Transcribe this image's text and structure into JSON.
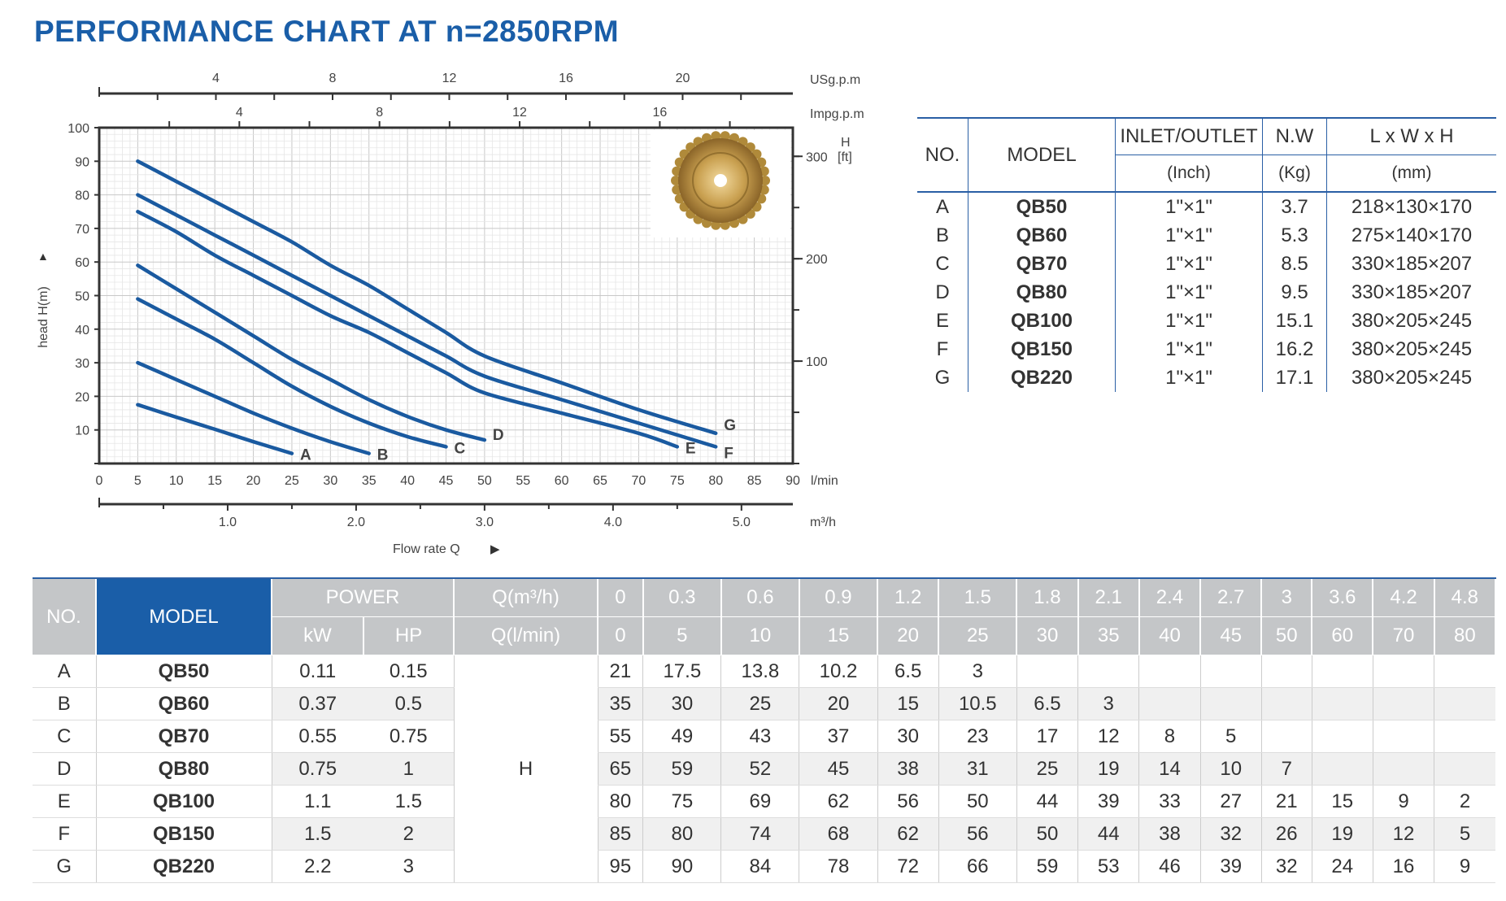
{
  "title": "PERFORMANCE CHART AT n=2850RPM",
  "chart_data": {
    "type": "line",
    "title": "PERFORMANCE CHART AT n=2850RPM",
    "xlabel": "Flow rate Q",
    "ylabel": "head H(m)",
    "xlim": [
      0,
      90
    ],
    "ylim": [
      0,
      100
    ],
    "grid": true,
    "x_unit": "l/min",
    "x_ticks": [
      "0",
      "5",
      "10",
      "15",
      "20",
      "25",
      "30",
      "35",
      "40",
      "45",
      "50",
      "55",
      "60",
      "65",
      "70",
      "75",
      "80",
      "85",
      "90"
    ],
    "y_ticks": [
      "10",
      "20",
      "30",
      "40",
      "50",
      "60",
      "70",
      "80",
      "90",
      "100"
    ],
    "ft_axis": {
      "unit_top": "H",
      "unit": "[ft]",
      "ticks": [
        {
          "value": 100,
          "label": "100"
        },
        {
          "value": 200,
          "label": "200"
        },
        {
          "value": 300,
          "label": "300"
        }
      ]
    },
    "m3h_axis": {
      "unit": "m³/h",
      "ticks": [
        {
          "value": 1.0,
          "label": "1.0"
        },
        {
          "value": 2.0,
          "label": "2.0"
        },
        {
          "value": 3.0,
          "label": "3.0"
        },
        {
          "value": 4.0,
          "label": "4.0"
        },
        {
          "value": 5.0,
          "label": "5.0"
        }
      ]
    },
    "usgpm_axis": {
      "unit": "USg.p.m",
      "ticks": [
        {
          "value": 4,
          "label": "4"
        },
        {
          "value": 8,
          "label": "8"
        },
        {
          "value": 12,
          "label": "12"
        },
        {
          "value": 16,
          "label": "16"
        },
        {
          "value": 20,
          "label": "20"
        }
      ]
    },
    "impgpm_axis": {
      "unit": "Impg.p.m",
      "ticks": [
        {
          "value": 4,
          "label": "4"
        },
        {
          "value": 8,
          "label": "8"
        },
        {
          "value": 12,
          "label": "12"
        },
        {
          "value": 16,
          "label": "16"
        }
      ]
    },
    "series": [
      {
        "name": "A",
        "x": [
          5,
          10,
          15,
          20,
          25
        ],
        "y": [
          17.5,
          13.8,
          10.2,
          6.5,
          3
        ]
      },
      {
        "name": "B",
        "x": [
          5,
          10,
          15,
          20,
          25,
          30,
          35
        ],
        "y": [
          30,
          25,
          20,
          15,
          10.5,
          6.5,
          3
        ]
      },
      {
        "name": "C",
        "x": [
          5,
          10,
          15,
          20,
          25,
          30,
          35,
          40,
          45
        ],
        "y": [
          49,
          43,
          37,
          30,
          23,
          17,
          12,
          8,
          5
        ]
      },
      {
        "name": "D",
        "x": [
          5,
          10,
          15,
          20,
          25,
          30,
          35,
          40,
          45,
          50
        ],
        "y": [
          59,
          52,
          45,
          38,
          31,
          25,
          19,
          14,
          10,
          7
        ]
      },
      {
        "name": "E",
        "x": [
          5,
          10,
          15,
          20,
          25,
          30,
          35,
          40,
          45,
          50,
          60,
          70,
          75
        ],
        "y": [
          75,
          69,
          62,
          56,
          50,
          44,
          39,
          33,
          27,
          21,
          15,
          9,
          5
        ]
      },
      {
        "name": "F",
        "x": [
          5,
          10,
          15,
          20,
          25,
          30,
          35,
          40,
          45,
          50,
          60,
          70,
          80
        ],
        "y": [
          80,
          74,
          68,
          62,
          56,
          50,
          44,
          38,
          32,
          26,
          19,
          12,
          5
        ]
      },
      {
        "name": "G",
        "x": [
          5,
          10,
          15,
          20,
          25,
          30,
          35,
          40,
          45,
          50,
          60,
          70,
          80
        ],
        "y": [
          90,
          84,
          78,
          72,
          66,
          59,
          53,
          46,
          39,
          32,
          24,
          16,
          9
        ]
      }
    ]
  },
  "spec_table": {
    "headers": {
      "no": "NO.",
      "model": "MODEL",
      "inlet": "INLET/OUTLET",
      "inlet_unit": "(Inch)",
      "nw": "N.W",
      "nw_unit": "(Kg)",
      "dims": "L x W x H",
      "dims_unit": "(mm)"
    },
    "rows": [
      {
        "no": "A",
        "model": "QB50",
        "inlet": "1\"×1\"",
        "nw": "3.7",
        "dims": "218×130×170"
      },
      {
        "no": "B",
        "model": "QB60",
        "inlet": "1\"×1\"",
        "nw": "5.3",
        "dims": "275×140×170"
      },
      {
        "no": "C",
        "model": "QB70",
        "inlet": "1\"×1\"",
        "nw": "8.5",
        "dims": "330×185×207"
      },
      {
        "no": "D",
        "model": "QB80",
        "inlet": "1\"×1\"",
        "nw": "9.5",
        "dims": "330×185×207"
      },
      {
        "no": "E",
        "model": "QB100",
        "inlet": "1\"×1\"",
        "nw": "15.1",
        "dims": "380×205×245"
      },
      {
        "no": "F",
        "model": "QB150",
        "inlet": "1\"×1\"",
        "nw": "16.2",
        "dims": "380×205×245"
      },
      {
        "no": "G",
        "model": "QB220",
        "inlet": "1\"×1\"",
        "nw": "17.1",
        "dims": "380×205×245"
      }
    ]
  },
  "perf_table": {
    "headers": {
      "no": "NO.",
      "model": "MODEL",
      "power": "POWER",
      "kw": "kW",
      "hp": "HP",
      "q_m3h": "Q(m³/h)",
      "q_lmin": "Q(l/min)",
      "h": "H"
    },
    "q_m3h": [
      "0",
      "0.3",
      "0.6",
      "0.9",
      "1.2",
      "1.5",
      "1.8",
      "2.1",
      "2.4",
      "2.7",
      "3",
      "3.6",
      "4.2",
      "4.8"
    ],
    "q_lmin": [
      "0",
      "5",
      "10",
      "15",
      "20",
      "25",
      "30",
      "35",
      "40",
      "45",
      "50",
      "60",
      "70",
      "80"
    ],
    "rows": [
      {
        "no": "A",
        "model": "QB50",
        "kw": "0.11",
        "hp": "0.15",
        "h": [
          "21",
          "17.5",
          "13.8",
          "10.2",
          "6.5",
          "3",
          "",
          "",
          "",
          "",
          "",
          "",
          "",
          ""
        ]
      },
      {
        "no": "B",
        "model": "QB60",
        "kw": "0.37",
        "hp": "0.5",
        "h": [
          "35",
          "30",
          "25",
          "20",
          "15",
          "10.5",
          "6.5",
          "3",
          "",
          "",
          "",
          "",
          "",
          ""
        ]
      },
      {
        "no": "C",
        "model": "QB70",
        "kw": "0.55",
        "hp": "0.75",
        "h": [
          "55",
          "49",
          "43",
          "37",
          "30",
          "23",
          "17",
          "12",
          "8",
          "5",
          "",
          "",
          "",
          ""
        ]
      },
      {
        "no": "D",
        "model": "QB80",
        "kw": "0.75",
        "hp": "1",
        "h": [
          "65",
          "59",
          "52",
          "45",
          "38",
          "31",
          "25",
          "19",
          "14",
          "10",
          "7",
          "",
          "",
          ""
        ]
      },
      {
        "no": "E",
        "model": "QB100",
        "kw": "1.1",
        "hp": "1.5",
        "h": [
          "80",
          "75",
          "69",
          "62",
          "56",
          "50",
          "44",
          "39",
          "33",
          "27",
          "21",
          "15",
          "9",
          "2"
        ]
      },
      {
        "no": "F",
        "model": "QB150",
        "kw": "1.5",
        "hp": "2",
        "h": [
          "85",
          "80",
          "74",
          "68",
          "62",
          "56",
          "50",
          "44",
          "38",
          "32",
          "26",
          "19",
          "12",
          "5"
        ]
      },
      {
        "no": "G",
        "model": "QB220",
        "kw": "2.2",
        "hp": "3",
        "h": [
          "95",
          "90",
          "84",
          "78",
          "72",
          "66",
          "59",
          "53",
          "46",
          "39",
          "32",
          "24",
          "16",
          "9"
        ]
      }
    ]
  },
  "colors": {
    "title": "#1a5ea8",
    "curve": "#1a5aa0",
    "header_gray": "#c4c6c8",
    "model_blue": "#1a5ea8",
    "rule": "#2a5fa5"
  }
}
